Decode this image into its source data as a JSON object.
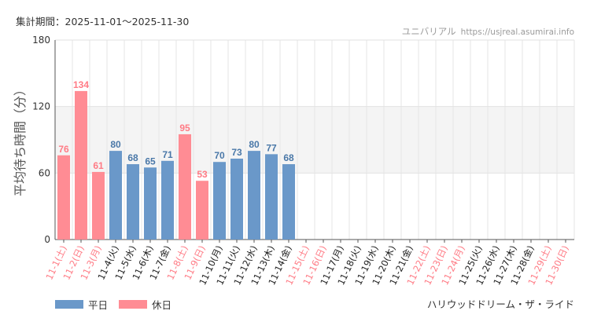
{
  "header": {
    "period_label": "集計期間：2025-11-01〜2025-11-30",
    "site_name": "ユニバリアル",
    "site_url": "https://usjreal.asumirai.info"
  },
  "footer": {
    "ride_name": "ハリウッドドリーム・ザ・ライド"
  },
  "chart_data": {
    "type": "bar",
    "title": "",
    "xlabel": "",
    "ylabel": "平均待ち時間（分）",
    "ylim": [
      0,
      180
    ],
    "yticks": [
      0,
      60,
      120,
      180
    ],
    "shaded_band": [
      60,
      120
    ],
    "grid": true,
    "legend_position": "bottom-left",
    "colors": {
      "weekday": "#6a98c9",
      "holiday": "#ff8c94",
      "weekday_label": "#4a78a8",
      "holiday_label": "#ff7b85",
      "band": "#f4f4f4"
    },
    "legend": [
      {
        "key": "weekday",
        "label": "平日"
      },
      {
        "key": "holiday",
        "label": "休日"
      }
    ],
    "categories": [
      "11-1(土)",
      "11-2(日)",
      "11-3(月)",
      "11-4(火)",
      "11-5(水)",
      "11-6(木)",
      "11-7(金)",
      "11-8(土)",
      "11-9(日)",
      "11-10(月)",
      "11-11(火)",
      "11-12(水)",
      "11-13(木)",
      "11-14(金)",
      "11-15(土)",
      "11-16(日)",
      "11-17(月)",
      "11-18(火)",
      "11-19(水)",
      "11-20(木)",
      "11-21(金)",
      "11-22(土)",
      "11-23(日)",
      "11-24(月)",
      "11-25(火)",
      "11-26(水)",
      "11-27(木)",
      "11-28(金)",
      "11-29(土)",
      "11-30(日)"
    ],
    "day_types": [
      "holiday",
      "holiday",
      "holiday",
      "weekday",
      "weekday",
      "weekday",
      "weekday",
      "holiday",
      "holiday",
      "weekday",
      "weekday",
      "weekday",
      "weekday",
      "weekday",
      "holiday",
      "holiday",
      "weekday",
      "weekday",
      "weekday",
      "weekday",
      "weekday",
      "holiday",
      "holiday",
      "holiday",
      "weekday",
      "weekday",
      "weekday",
      "weekday",
      "holiday",
      "holiday"
    ],
    "values": [
      76,
      134,
      61,
      80,
      68,
      65,
      71,
      95,
      53,
      70,
      73,
      80,
      77,
      68,
      null,
      null,
      null,
      null,
      null,
      null,
      null,
      null,
      null,
      null,
      null,
      null,
      null,
      null,
      null,
      null
    ]
  }
}
